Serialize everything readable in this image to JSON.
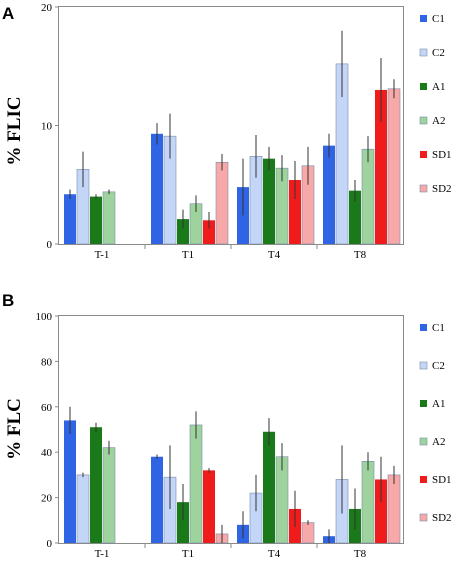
{
  "colors": {
    "C1": "#2f64e4",
    "C2": "#c4d6f7",
    "A1": "#1a7a1a",
    "A2": "#9ed39e",
    "SD1": "#f01c1c",
    "SD2": "#f7a8a8"
  },
  "chart_data": [
    {
      "type": "bar",
      "panel_label": "A",
      "ylabel": "% FLIC",
      "ylim": [
        0,
        20
      ],
      "yticks": [
        0,
        10,
        20
      ],
      "categories": [
        "T-1",
        "T1",
        "T4",
        "T8"
      ],
      "legend_position": "right",
      "grid": false,
      "series": [
        {
          "name": "C1",
          "values": [
            4.2,
            9.3,
            4.8,
            8.3
          ],
          "errors": [
            0.4,
            0.9,
            2.4,
            1.0
          ]
        },
        {
          "name": "C2",
          "values": [
            6.3,
            9.1,
            7.4,
            15.2
          ],
          "errors": [
            1.5,
            1.9,
            1.8,
            2.8
          ]
        },
        {
          "name": "A1",
          "values": [
            4.0,
            2.1,
            7.2,
            4.5
          ],
          "errors": [
            0.2,
            0.8,
            1.0,
            0.9
          ]
        },
        {
          "name": "A2",
          "values": [
            4.4,
            3.4,
            6.4,
            8.0
          ],
          "errors": [
            0.2,
            0.7,
            1.1,
            1.1
          ]
        },
        {
          "name": "SD1",
          "values": [
            null,
            2.0,
            5.4,
            13.0
          ],
          "errors": [
            null,
            0.7,
            1.6,
            2.7
          ]
        },
        {
          "name": "SD2",
          "values": [
            null,
            6.9,
            6.6,
            13.1
          ],
          "errors": [
            null,
            0.7,
            1.6,
            0.8
          ]
        }
      ]
    },
    {
      "type": "bar",
      "panel_label": "B",
      "ylabel": "% FLC",
      "ylim": [
        0,
        100
      ],
      "yticks": [
        0,
        20,
        40,
        60,
        80,
        100
      ],
      "categories": [
        "T-1",
        "T1",
        "T4",
        "T8"
      ],
      "legend_position": "right",
      "grid": false,
      "series": [
        {
          "name": "C1",
          "values": [
            54,
            38,
            8,
            3
          ],
          "errors": [
            6,
            1,
            6,
            3
          ]
        },
        {
          "name": "C2",
          "values": [
            30,
            29,
            22,
            28
          ],
          "errors": [
            1,
            14,
            8,
            15
          ]
        },
        {
          "name": "A1",
          "values": [
            51,
            18,
            49,
            15
          ],
          "errors": [
            2,
            8,
            6,
            9
          ]
        },
        {
          "name": "A2",
          "values": [
            42,
            52,
            38,
            36
          ],
          "errors": [
            3,
            6,
            6,
            4
          ]
        },
        {
          "name": "SD1",
          "values": [
            null,
            32,
            15,
            28
          ],
          "errors": [
            null,
            1,
            8,
            10
          ]
        },
        {
          "name": "SD2",
          "values": [
            null,
            4,
            9,
            30
          ],
          "errors": [
            null,
            4,
            1,
            4
          ]
        }
      ]
    }
  ]
}
